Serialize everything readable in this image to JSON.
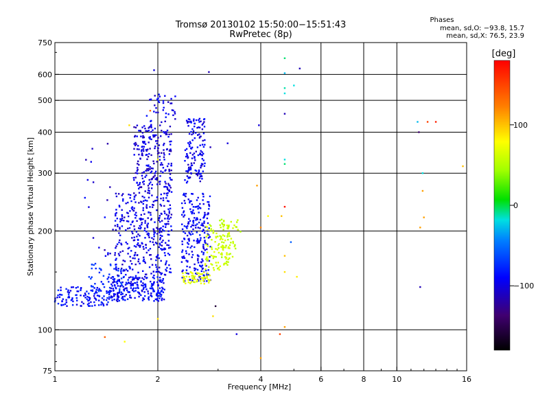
{
  "chart_data": {
    "type": "scatter",
    "title": "Tromsø 20130102 15:50:00−15:51:43",
    "subtitle": "RwPretec (8p)",
    "stats": {
      "heading": "Phases",
      "line_o": "mean, sd,O: −93.8, 15.7",
      "line_x": "mean, sd,X: 76.5, 23.9"
    },
    "xlabel": "Frequency [MHz]",
    "ylabel": "Stationary phase Virtual Height [km]",
    "xscale": "log",
    "yscale": "log",
    "xlim": [
      1,
      16
    ],
    "ylim": [
      75,
      750
    ],
    "xticks": [
      1,
      2,
      4,
      6,
      8,
      10,
      16
    ],
    "xtick_labels": [
      "1",
      "2",
      "4",
      "6",
      "8",
      "10",
      "16"
    ],
    "xgrid": [
      2,
      4,
      6,
      8,
      10
    ],
    "yticks": [
      75,
      100,
      200,
      300,
      400,
      500,
      600,
      750
    ],
    "ytick_labels": [
      "75",
      "100",
      "200",
      "300",
      "400",
      "500",
      "600",
      "750"
    ],
    "ygrid": [
      100,
      200,
      300,
      400,
      500,
      600
    ],
    "grid": true,
    "colorbar": {
      "label": "[deg]",
      "min": -180,
      "max": 180,
      "ticks": [
        100,
        0,
        -100
      ],
      "tick_labels": [
        "100",
        "0",
        "−100"
      ]
    },
    "clusters": [
      {
        "x": [
          1.0,
          1.45
        ],
        "y": [
          118,
          135
        ],
        "phase": -95,
        "n": 120
      },
      {
        "x": [
          1.25,
          1.6
        ],
        "y": [
          128,
          160
        ],
        "phase": -80,
        "n": 60
      },
      {
        "x": [
          1.45,
          2.1
        ],
        "y": [
          122,
          145
        ],
        "phase": -100,
        "n": 220
      },
      {
        "x": [
          1.5,
          2.2
        ],
        "y": [
          145,
          260
        ],
        "phase": -105,
        "n": 360
      },
      {
        "x": [
          1.7,
          2.2
        ],
        "y": [
          260,
          420
        ],
        "phase": -110,
        "n": 240
      },
      {
        "x": [
          1.85,
          2.25
        ],
        "y": [
          420,
          530
        ],
        "phase": -105,
        "n": 40
      },
      {
        "x": [
          2.35,
          2.85
        ],
        "y": [
          140,
          260
        ],
        "phase": -100,
        "n": 240
      },
      {
        "x": [
          2.4,
          2.75
        ],
        "y": [
          280,
          440
        ],
        "phase": -105,
        "n": 140
      },
      {
        "x": [
          2.35,
          2.85
        ],
        "y": [
          138,
          150
        ],
        "phase": 85,
        "n": 60
      },
      {
        "x": [
          2.75,
          3.25
        ],
        "y": [
          150,
          210
        ],
        "phase": 75,
        "n": 110
      },
      {
        "x": [
          3.0,
          3.5
        ],
        "y": [
          165,
          220
        ],
        "phase": 65,
        "n": 40
      },
      {
        "x": [
          1.2,
          1.5
        ],
        "y": [
          150,
          380
        ],
        "phase": -110,
        "n": 20
      }
    ],
    "points": [
      {
        "x": 1.95,
        "y": 618,
        "phase": -110
      },
      {
        "x": 2.82,
        "y": 610,
        "phase": -120
      },
      {
        "x": 3.95,
        "y": 420,
        "phase": -110
      },
      {
        "x": 4.7,
        "y": 672,
        "phase": -10
      },
      {
        "x": 4.7,
        "y": 605,
        "phase": -30
      },
      {
        "x": 5.2,
        "y": 625,
        "phase": -120
      },
      {
        "x": 4.7,
        "y": 545,
        "phase": -15
      },
      {
        "x": 4.7,
        "y": 525,
        "phase": -20
      },
      {
        "x": 5.0,
        "y": 555,
        "phase": -20
      },
      {
        "x": 4.7,
        "y": 455,
        "phase": -120
      },
      {
        "x": 4.7,
        "y": 330,
        "phase": -20
      },
      {
        "x": 4.7,
        "y": 320,
        "phase": -10
      },
      {
        "x": 4.7,
        "y": 237,
        "phase": 175
      },
      {
        "x": 4.6,
        "y": 222,
        "phase": 120
      },
      {
        "x": 4.2,
        "y": 222,
        "phase": 100
      },
      {
        "x": 4.0,
        "y": 205,
        "phase": 140
      },
      {
        "x": 4.9,
        "y": 185,
        "phase": -60
      },
      {
        "x": 4.7,
        "y": 168,
        "phase": 120
      },
      {
        "x": 4.7,
        "y": 150,
        "phase": 110
      },
      {
        "x": 5.1,
        "y": 145,
        "phase": 105
      },
      {
        "x": 4.7,
        "y": 102,
        "phase": 130
      },
      {
        "x": 4.55,
        "y": 97,
        "phase": 160
      },
      {
        "x": 4.0,
        "y": 82,
        "phase": 130
      },
      {
        "x": 3.4,
        "y": 97,
        "phase": -110
      },
      {
        "x": 3.9,
        "y": 275,
        "phase": 130
      },
      {
        "x": 2.95,
        "y": 118,
        "phase": -160
      },
      {
        "x": 2.9,
        "y": 110,
        "phase": 110
      },
      {
        "x": 2.0,
        "y": 108,
        "phase": 110
      },
      {
        "x": 1.4,
        "y": 95,
        "phase": 150
      },
      {
        "x": 1.6,
        "y": 92,
        "phase": 100
      },
      {
        "x": 1.65,
        "y": 420,
        "phase": 110
      },
      {
        "x": 1.9,
        "y": 465,
        "phase": 150
      },
      {
        "x": 2.0,
        "y": 330,
        "phase": 100
      },
      {
        "x": 2.85,
        "y": 360,
        "phase": -120
      },
      {
        "x": 3.2,
        "y": 370,
        "phase": -110
      },
      {
        "x": 11.5,
        "y": 430,
        "phase": -30
      },
      {
        "x": 12.3,
        "y": 430,
        "phase": 160
      },
      {
        "x": 13.0,
        "y": 430,
        "phase": 170
      },
      {
        "x": 11.6,
        "y": 400,
        "phase": -140
      },
      {
        "x": 11.9,
        "y": 300,
        "phase": -20
      },
      {
        "x": 11.9,
        "y": 265,
        "phase": 130
      },
      {
        "x": 12.0,
        "y": 220,
        "phase": 130
      },
      {
        "x": 11.7,
        "y": 205,
        "phase": 130
      },
      {
        "x": 11.7,
        "y": 135,
        "phase": -120
      },
      {
        "x": 15.6,
        "y": 315,
        "phase": 120
      }
    ]
  }
}
